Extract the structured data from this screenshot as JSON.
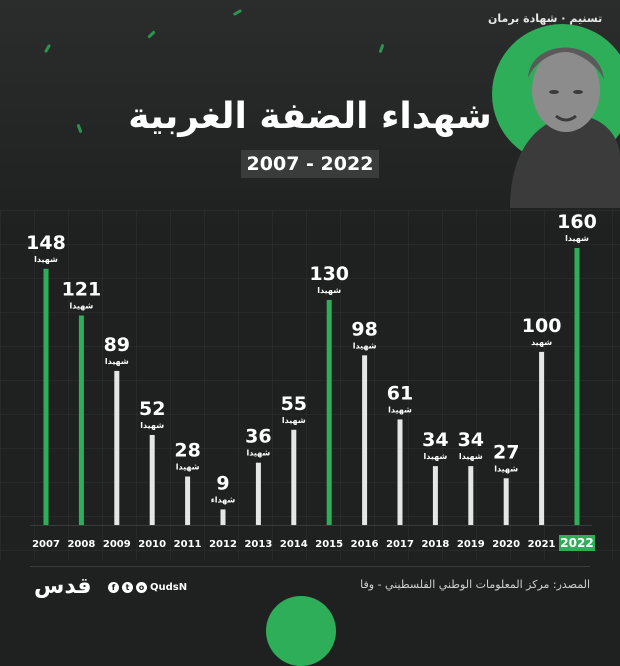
{
  "header": {
    "brand": "تسنيم · شهادة برمان",
    "title": "شهداء الضفة الغربية",
    "subtitle": "2007 - 2022"
  },
  "colors": {
    "accent_green": "#2fae5a",
    "bar_white": "#e6e6e6",
    "background": "#1f2121"
  },
  "chart_data": {
    "type": "bar",
    "title": "شهداء الضفة الغربية",
    "subtitle": "2007 - 2022",
    "categories": [
      "2007",
      "2008",
      "2009",
      "2010",
      "2011",
      "2012",
      "2013",
      "2014",
      "2015",
      "2016",
      "2017",
      "2018",
      "2019",
      "2020",
      "2021",
      "2022"
    ],
    "values": [
      148,
      121,
      89,
      52,
      28,
      9,
      36,
      55,
      130,
      98,
      61,
      34,
      34,
      27,
      100,
      160
    ],
    "unit_labels": [
      "شهيدا",
      "شهيدا",
      "شهيدا",
      "شهيدا",
      "شهيدا",
      "شهداء",
      "شهيدا",
      "شهيدا",
      "شهيدا",
      "شهيدا",
      "شهيدا",
      "شهيدا",
      "شهيدا",
      "شهيدا",
      "شهيد",
      "شهيدا"
    ],
    "highlighted": [
      "2007",
      "2008",
      "2015",
      "2022"
    ],
    "ylim": [
      0,
      160
    ],
    "xlabel": "",
    "ylabel": "",
    "grid": false
  },
  "footer": {
    "logo": "قدس",
    "handle": "QudsN",
    "source": "المصدر: مركز المعلومات الوطني الفلسطيني - وفا"
  }
}
